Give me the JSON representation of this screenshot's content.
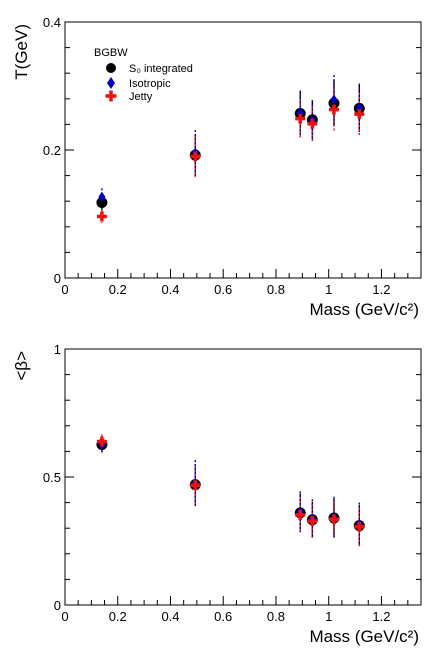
{
  "chart_data": [
    {
      "type": "scatter",
      "title": "",
      "xlabel": "Mass (GeV/c²)",
      "ylabel": "T(GeV)",
      "xlim": [
        0,
        1.35
      ],
      "ylim": [
        0,
        0.4
      ],
      "xticks": [
        "0",
        "0.2",
        "0.4",
        "0.6",
        "0.8",
        "1",
        "1.2"
      ],
      "yticks": [
        "0",
        "0.2",
        "0.4"
      ],
      "legend": {
        "title": "BGBW",
        "position": "top-left",
        "entries": [
          "S₀ integrated",
          "Isotropic",
          "Jetty"
        ]
      },
      "series": [
        {
          "name": "S₀ integrated",
          "color": "#000000",
          "marker": "circle",
          "x": [
            0.14,
            0.494,
            0.892,
            0.938,
            1.02,
            1.116
          ],
          "y": [
            0.118,
            0.192,
            0.257,
            0.247,
            0.273,
            0.265
          ],
          "err": [
            0.012,
            0.033,
            0.033,
            0.03,
            0.036,
            0.036
          ]
        },
        {
          "name": "Isotropic",
          "color": "#0000cc",
          "marker": "diamond",
          "x": [
            0.14,
            0.494,
            0.892,
            0.938,
            1.02,
            1.116
          ],
          "y": [
            0.127,
            0.196,
            0.258,
            0.246,
            0.279,
            0.266
          ],
          "err": [
            0.013,
            0.035,
            0.035,
            0.032,
            0.038,
            0.038
          ]
        },
        {
          "name": "Jetty",
          "color": "#ee1111",
          "marker": "cross",
          "x": [
            0.14,
            0.494,
            0.892,
            0.938,
            1.02,
            1.116
          ],
          "y": [
            0.096,
            0.19,
            0.249,
            0.241,
            0.263,
            0.256
          ],
          "err": [
            0.01,
            0.032,
            0.03,
            0.027,
            0.033,
            0.033
          ]
        }
      ]
    },
    {
      "type": "scatter",
      "title": "",
      "xlabel": "Mass (GeV/c²)",
      "ylabel": "<β>",
      "xlim": [
        0,
        1.35
      ],
      "ylim": [
        0,
        1
      ],
      "xticks": [
        "0",
        "0.2",
        "0.4",
        "0.6",
        "0.8",
        "1",
        "1.2"
      ],
      "yticks": [
        "0",
        "0.5",
        "1"
      ],
      "series": [
        {
          "name": "S₀ integrated",
          "color": "#000000",
          "marker": "circle",
          "x": [
            0.14,
            0.494,
            0.892,
            0.938,
            1.02,
            1.116
          ],
          "y": [
            0.627,
            0.47,
            0.36,
            0.333,
            0.34,
            0.31
          ],
          "err": [
            0.03,
            0.08,
            0.075,
            0.07,
            0.075,
            0.08
          ]
        },
        {
          "name": "Isotropic",
          "color": "#0000cc",
          "marker": "diamond",
          "x": [
            0.14,
            0.494,
            0.892,
            0.938,
            1.02,
            1.116
          ],
          "y": [
            0.625,
            0.476,
            0.364,
            0.338,
            0.343,
            0.315
          ],
          "err": [
            0.032,
            0.09,
            0.08,
            0.075,
            0.08,
            0.085
          ]
        },
        {
          "name": "Jetty",
          "color": "#ee1111",
          "marker": "cross",
          "x": [
            0.14,
            0.494,
            0.892,
            0.938,
            1.02,
            1.116
          ],
          "y": [
            0.638,
            0.468,
            0.352,
            0.328,
            0.335,
            0.305
          ],
          "err": [
            0.028,
            0.075,
            0.07,
            0.065,
            0.07,
            0.075
          ]
        }
      ]
    }
  ]
}
